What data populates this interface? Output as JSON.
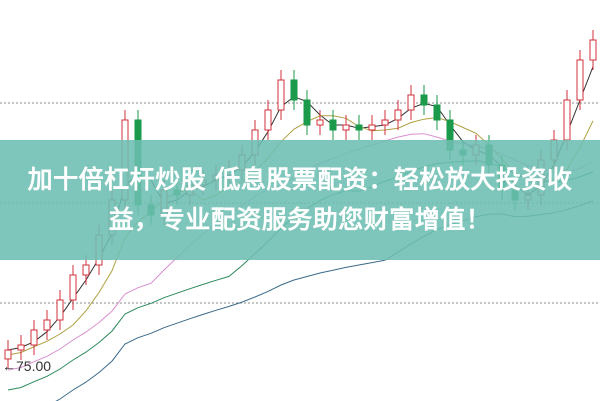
{
  "chart_data": {
    "type": "candlestick",
    "title": "",
    "annotation": "←75.00",
    "grid": true,
    "colors": {
      "up": "#d0303a",
      "down": "#1a9a4a",
      "ma5": "#333333",
      "ma10": "#b0a040",
      "ma20": "#d98fd0",
      "ma30": "#2a8a5a",
      "ma60": "#3a6a8a"
    },
    "open": [
      75.8,
      76.7,
      77.2,
      78.7,
      79.7,
      81.7,
      84.2,
      85.2,
      88.2,
      91.7,
      99.7,
      91.2,
      90.2,
      92.7,
      92.2,
      93.2,
      93.7,
      94.2,
      94.7,
      96.2,
      98.7,
      100.7,
      103.7,
      101.7,
      99.2,
      99.7,
      98.7,
      99.2,
      98.7,
      99.2,
      99.7,
      100.7,
      102.2,
      101.2,
      99.7,
      96.7,
      96.2,
      97.2,
      95.2,
      92.7,
      91.7,
      92.2,
      95.7,
      97.7,
      101.7,
      105.7
    ],
    "close": [
      76.7,
      77.2,
      78.7,
      79.7,
      81.7,
      84.2,
      85.2,
      88.2,
      91.7,
      99.7,
      91.2,
      90.2,
      92.7,
      92.2,
      93.2,
      93.7,
      94.2,
      94.7,
      96.2,
      98.7,
      100.7,
      103.7,
      101.7,
      99.2,
      99.7,
      98.7,
      99.2,
      98.7,
      99.2,
      99.7,
      100.7,
      102.2,
      101.2,
      99.7,
      96.7,
      96.2,
      97.2,
      95.2,
      92.7,
      91.7,
      92.2,
      95.7,
      97.7,
      101.7,
      105.7,
      107.7
    ]
  },
  "banner": {
    "text": "加十倍杠杆炒股 低息股票配资：轻松放大投资收益，专业配资服务助您财富增值！"
  }
}
